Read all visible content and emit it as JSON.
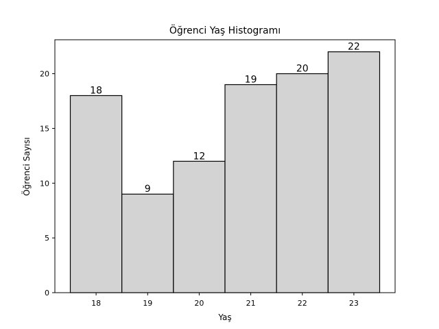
{
  "chart_data": {
    "type": "bar",
    "title": "Öğrenci Yaş Histogramı",
    "xlabel": "Yaş",
    "ylabel": "Öğrenci Sayısı",
    "categories": [
      "18",
      "19",
      "20",
      "21",
      "22",
      "23"
    ],
    "values": [
      18,
      9,
      12,
      19,
      20,
      22
    ],
    "ylim": [
      0,
      23.1
    ],
    "yticks": [
      0,
      5,
      10,
      15,
      20
    ],
    "bar_color": "#d3d3d3",
    "edge_color": "#000000",
    "grid": false,
    "data_labels": true
  }
}
